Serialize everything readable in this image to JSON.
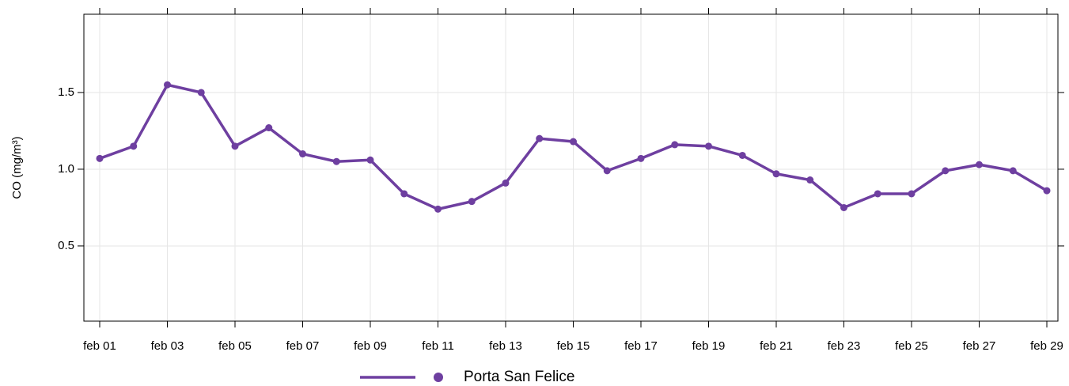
{
  "chart_data": {
    "type": "line",
    "y_label": "CO (mg/m³)",
    "categories": [
      "feb 01",
      null,
      "feb 03",
      null,
      "feb 05",
      null,
      "feb 07",
      null,
      "feb 09",
      null,
      "feb 11",
      null,
      "feb 13",
      null,
      "feb 15",
      null,
      "feb 17",
      null,
      "feb 19",
      null,
      "feb 21",
      null,
      "feb 23",
      null,
      "feb 25",
      null,
      "feb 27",
      null,
      "feb 29"
    ],
    "series": [
      {
        "name": "Porta San Felice",
        "color": "#6e3fa0",
        "values": [
          1.07,
          1.15,
          1.55,
          1.5,
          1.15,
          1.27,
          1.1,
          1.05,
          1.06,
          0.84,
          0.74,
          0.79,
          0.91,
          1.2,
          1.18,
          0.99,
          1.07,
          1.16,
          1.15,
          1.09,
          0.97,
          0.93,
          0.75,
          0.84,
          0.84,
          0.99,
          1.03,
          0.99,
          0.86
        ]
      }
    ],
    "ylim": [
      0.01,
      2.01
    ],
    "yticks": [
      0.5,
      1.0,
      1.5
    ],
    "grid": true
  }
}
